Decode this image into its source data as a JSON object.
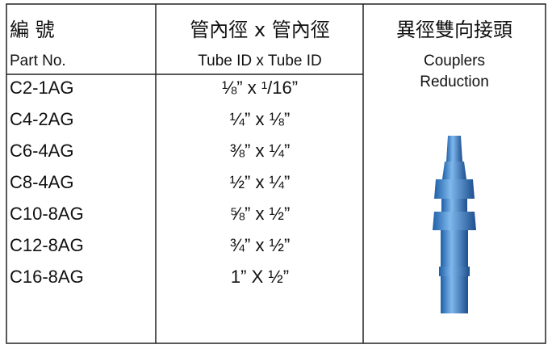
{
  "header": {
    "part_no_zh": "編 號",
    "part_no_en": "Part No.",
    "tube_zh": "管內徑 x 管內徑",
    "tube_en": "Tube ID x Tube ID",
    "product_zh": "異徑雙向接頭",
    "product_en": [
      "Couplers",
      "Reduction"
    ]
  },
  "table": {
    "rows": [
      [
        "C2-1AG",
        "⅛” x ¹/16”"
      ],
      [
        "C4-2AG",
        "¼” x ⅛”"
      ],
      [
        "C6-4AG",
        "⅜” x ¼”"
      ],
      [
        "C8-4AG",
        "½” x ¼”"
      ],
      [
        "C10-8AG",
        "⅝” x ½”"
      ],
      [
        "C12-8AG",
        "¾” x ½”"
      ],
      [
        "C16-8AG",
        "1” X ½”"
      ]
    ]
  }
}
